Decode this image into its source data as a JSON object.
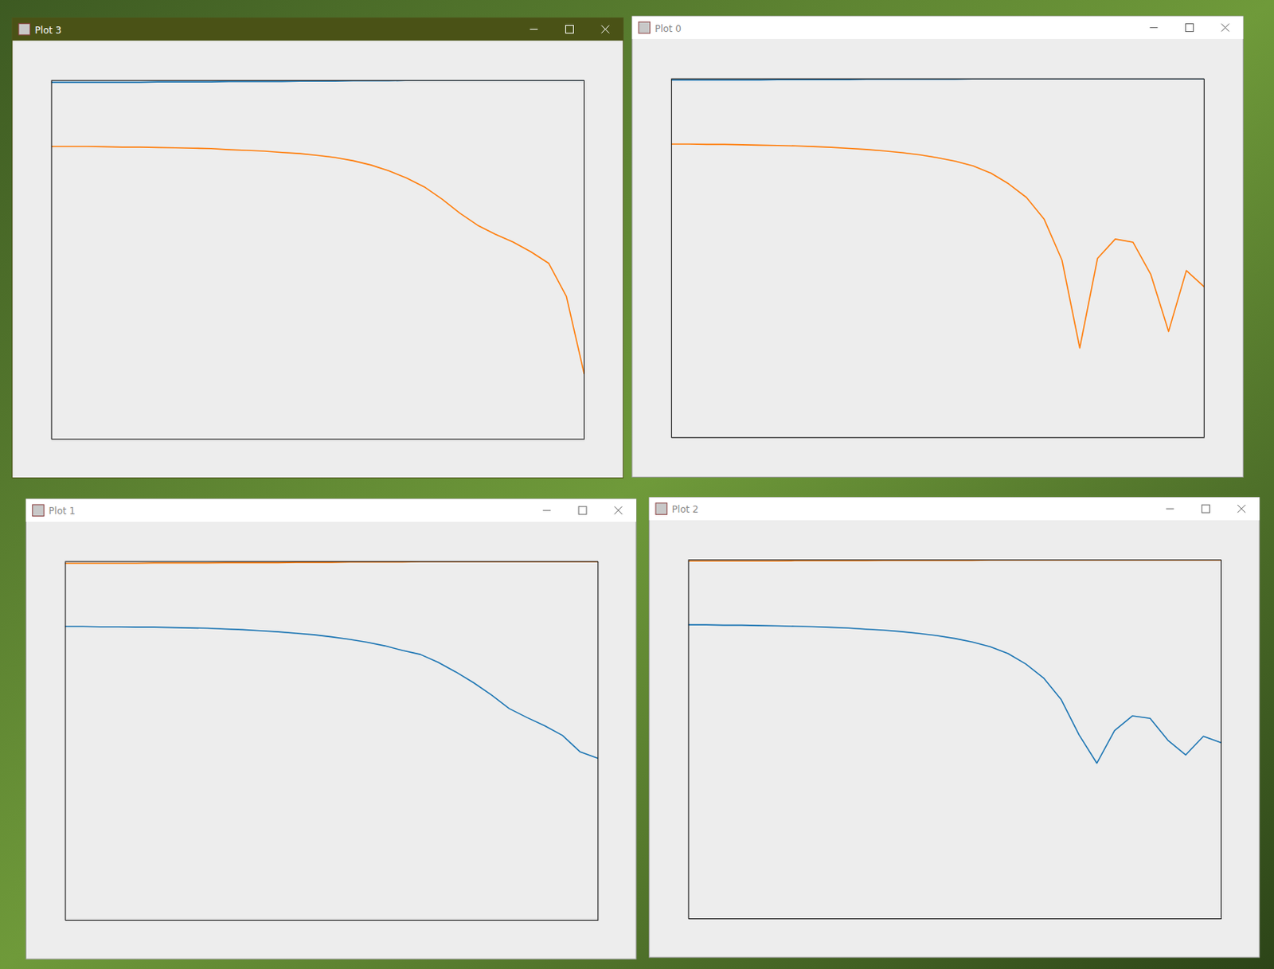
{
  "chart_data": [
    {
      "type": "line",
      "title": "Plot 3",
      "tick_labels": false,
      "x": [
        0,
        1,
        2,
        3,
        4,
        5,
        6,
        7,
        8,
        9,
        10,
        11,
        12,
        13,
        14,
        15,
        16,
        17,
        18,
        19,
        20,
        21,
        22,
        23,
        24,
        25,
        26,
        27,
        28,
        29,
        30
      ],
      "xlim": [
        0,
        30
      ],
      "ylim": [
        0,
        1
      ],
      "series": [
        {
          "color": "#1f77b4",
          "values": [
            0.995,
            0.995,
            0.995,
            0.995,
            0.995,
            0.995,
            0.996,
            0.996,
            0.996,
            0.996,
            0.997,
            0.997,
            0.997,
            0.997,
            0.998,
            0.998,
            0.998,
            0.999,
            0.999,
            0.999,
            1,
            1,
            1,
            1,
            1,
            1,
            1,
            1,
            1,
            1,
            1
          ]
        },
        {
          "color": "#ff7f0e",
          "values": [
            0.816,
            0.816,
            0.816,
            0.815,
            0.814,
            0.814,
            0.813,
            0.812,
            0.811,
            0.81,
            0.807,
            0.805,
            0.803,
            0.799,
            0.796,
            0.791,
            0.785,
            0.776,
            0.764,
            0.748,
            0.728,
            0.703,
            0.669,
            0.63,
            0.596,
            0.571,
            0.549,
            0.522,
            0.49,
            0.397,
            0.181
          ]
        }
      ]
    },
    {
      "type": "line",
      "title": "Plot 0",
      "tick_labels": false,
      "x": [
        0,
        1,
        2,
        3,
        4,
        5,
        6,
        7,
        8,
        9,
        10,
        11,
        12,
        13,
        14,
        15,
        16,
        17,
        18,
        19,
        20,
        21,
        22,
        23,
        24,
        25,
        26,
        27,
        28,
        29,
        30
      ],
      "xlim": [
        0,
        30
      ],
      "ylim": [
        0,
        1
      ],
      "series": [
        {
          "color": "#1f77b4",
          "values": [
            0.997,
            0.997,
            0.997,
            0.997,
            0.997,
            0.997,
            0.998,
            0.998,
            0.998,
            0.998,
            0.998,
            0.999,
            0.999,
            0.999,
            0.999,
            0.999,
            0.999,
            1,
            1,
            1,
            1,
            1,
            1,
            1,
            1,
            1,
            1,
            1,
            1,
            1,
            1
          ]
        },
        {
          "color": "#ff7f0e",
          "values": [
            0.818,
            0.818,
            0.817,
            0.817,
            0.816,
            0.815,
            0.814,
            0.813,
            0.811,
            0.809,
            0.806,
            0.803,
            0.799,
            0.794,
            0.788,
            0.78,
            0.77,
            0.757,
            0.737,
            0.707,
            0.669,
            0.608,
            0.494,
            0.249,
            0.499,
            0.553,
            0.544,
            0.454,
            0.295,
            0.465,
            0.42
          ]
        }
      ]
    },
    {
      "type": "line",
      "title": "Plot 1",
      "tick_labels": false,
      "x": [
        0,
        1,
        2,
        3,
        4,
        5,
        6,
        7,
        8,
        9,
        10,
        11,
        12,
        13,
        14,
        15,
        16,
        17,
        18,
        19,
        20,
        21,
        22,
        23,
        24,
        25,
        26,
        27,
        28,
        29,
        30
      ],
      "xlim": [
        0,
        30
      ],
      "ylim": [
        0,
        1
      ],
      "series": [
        {
          "color": "#ff7f0e",
          "values": [
            0.995,
            0.995,
            0.995,
            0.995,
            0.995,
            0.996,
            0.996,
            0.996,
            0.996,
            0.997,
            0.997,
            0.997,
            0.997,
            0.998,
            0.998,
            0.998,
            0.999,
            0.999,
            0.999,
            0.999,
            1,
            1,
            1,
            1,
            1,
            1,
            1,
            1,
            1,
            1,
            1
          ]
        },
        {
          "color": "#1f77b4",
          "values": [
            0.819,
            0.819,
            0.818,
            0.818,
            0.817,
            0.817,
            0.816,
            0.815,
            0.814,
            0.812,
            0.81,
            0.807,
            0.804,
            0.8,
            0.796,
            0.79,
            0.783,
            0.775,
            0.765,
            0.752,
            0.741,
            0.719,
            0.692,
            0.662,
            0.628,
            0.59,
            0.565,
            0.542,
            0.515,
            0.469,
            0.451
          ]
        }
      ]
    },
    {
      "type": "line",
      "title": "Plot 2",
      "tick_labels": false,
      "x": [
        0,
        1,
        2,
        3,
        4,
        5,
        6,
        7,
        8,
        9,
        10,
        11,
        12,
        13,
        14,
        15,
        16,
        17,
        18,
        19,
        20,
        21,
        22,
        23,
        24,
        25,
        26,
        27,
        28,
        29,
        30
      ],
      "xlim": [
        0,
        30
      ],
      "ylim": [
        0,
        1
      ],
      "series": [
        {
          "color": "#ff7f0e",
          "values": [
            0.997,
            0.997,
            0.997,
            0.997,
            0.997,
            0.997,
            0.998,
            0.998,
            0.998,
            0.998,
            0.998,
            0.999,
            0.999,
            0.999,
            0.999,
            0.999,
            0.999,
            1,
            1,
            1,
            1,
            1,
            1,
            1,
            1,
            1,
            1,
            1,
            1,
            1,
            1
          ]
        },
        {
          "color": "#1f77b4",
          "values": [
            0.819,
            0.819,
            0.818,
            0.818,
            0.817,
            0.816,
            0.815,
            0.814,
            0.812,
            0.81,
            0.807,
            0.804,
            0.8,
            0.795,
            0.789,
            0.781,
            0.771,
            0.758,
            0.739,
            0.71,
            0.671,
            0.61,
            0.512,
            0.433,
            0.524,
            0.565,
            0.558,
            0.497,
            0.456,
            0.508,
            0.49
          ]
        }
      ]
    }
  ]
}
